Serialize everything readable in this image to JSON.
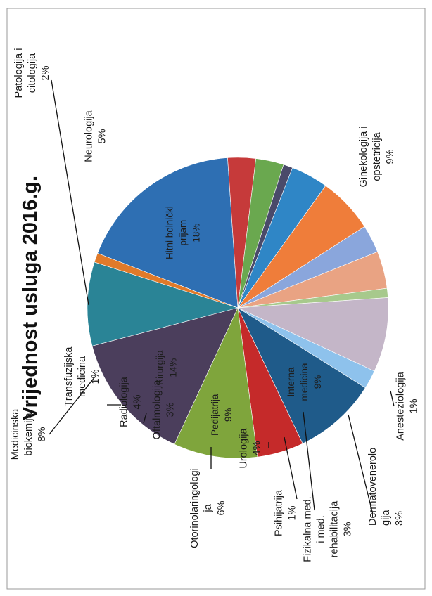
{
  "chart_data": {
    "type": "pie",
    "title": "Vrijednost usluga 2016.g.",
    "slices": [
      {
        "name": "Hitni bolnički prijam",
        "pct": "18%",
        "value": 18,
        "color": "#2e6fb3"
      },
      {
        "name": "Dermatovenerologija",
        "pct": "3%",
        "value": 3,
        "color": "#c63a3a"
      },
      {
        "name": "Fizikalna med. i med. rehabilitacija",
        "pct": "3%",
        "value": 3,
        "color": "#6aa84f"
      },
      {
        "name": "Psihijatrija",
        "pct": "1%",
        "value": 1,
        "color": "#4a4a6a"
      },
      {
        "name": "Urologija",
        "pct": "4%",
        "value": 4,
        "color": "#2f86c6"
      },
      {
        "name": "Otorinolaringologija",
        "pct": "6%",
        "value": 6,
        "color": "#ef7d3a"
      },
      {
        "name": "Oftalmologija",
        "pct": "3%",
        "value": 3,
        "color": "#8aa6dc"
      },
      {
        "name": "Radiologija",
        "pct": "4%",
        "value": 4,
        "color": "#e9a383"
      },
      {
        "name": "Transfuzijska medicina",
        "pct": "1%",
        "value": 1,
        "color": "#a7c98c"
      },
      {
        "name": "Medicinska biokemija",
        "pct": "8%",
        "value": 8,
        "color": "#c4b6c8"
      },
      {
        "name": "Patologija i citologija",
        "pct": "2%",
        "value": 2,
        "color": "#8ec2ec"
      },
      {
        "name": "Interna medicina",
        "pct": "9%",
        "value": 9,
        "color": "#1f5b8a"
      },
      {
        "name": "Neurologija",
        "pct": "5%",
        "value": 5,
        "color": "#c52a2a"
      },
      {
        "name": "Pedijatrija",
        "pct": "9%",
        "value": 9,
        "color": "#7fa53c"
      },
      {
        "name": "Kirurgija",
        "pct": "14%",
        "value": 14,
        "color": "#4b3e5c"
      },
      {
        "name": "Ginekologija i opstetricija",
        "pct": "9%",
        "value": 9,
        "color": "#2a8496"
      },
      {
        "name": "Anesteziologija",
        "pct": "1%",
        "value": 1,
        "color": "#e07a2a"
      }
    ]
  }
}
